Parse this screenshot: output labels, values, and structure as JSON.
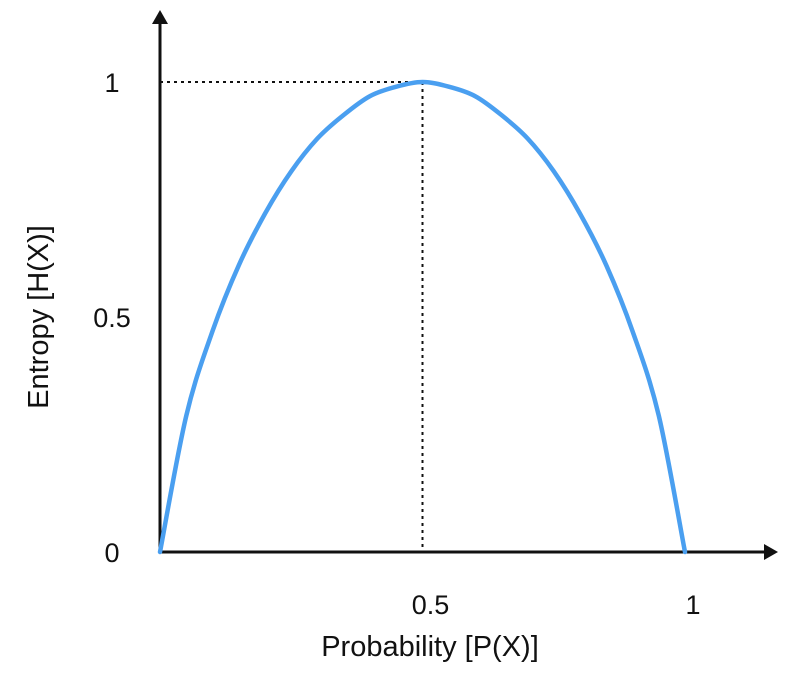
{
  "chart_data": {
    "type": "line",
    "title": "",
    "xlabel": "Probability [P(X)]",
    "ylabel": "Entropy [H(X)]",
    "xlim": [
      0,
      1
    ],
    "ylim": [
      0,
      1
    ],
    "x_ticks": [
      {
        "value": 0.5,
        "label": "0.5"
      },
      {
        "value": 1,
        "label": "1"
      }
    ],
    "y_ticks": [
      {
        "value": 0,
        "label": "0"
      },
      {
        "value": 0.5,
        "label": "0.5"
      },
      {
        "value": 1,
        "label": "1"
      }
    ],
    "grid": false,
    "series": [
      {
        "color": "#4a9ff0",
        "x": [
          0.0,
          0.05,
          0.1,
          0.15,
          0.2,
          0.25,
          0.3,
          0.35,
          0.4,
          0.45,
          0.5,
          0.55,
          0.6,
          0.65,
          0.7,
          0.75,
          0.8,
          0.85,
          0.9,
          0.95,
          1.0
        ],
        "y": [
          0.0,
          0.29,
          0.47,
          0.61,
          0.72,
          0.81,
          0.88,
          0.93,
          0.97,
          0.99,
          1.0,
          0.99,
          0.97,
          0.93,
          0.88,
          0.81,
          0.72,
          0.61,
          0.47,
          0.29,
          0.0
        ]
      }
    ],
    "annotations": [
      {
        "type": "reference-lines",
        "x": 0.5,
        "y": 1,
        "style": "dotted",
        "color": "#111111"
      }
    ],
    "axis_color": "#111111"
  }
}
